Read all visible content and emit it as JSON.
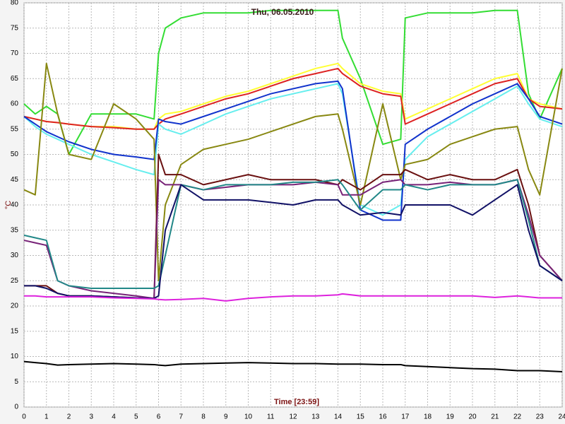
{
  "chart_data": {
    "type": "line",
    "title": "Thu, 06.05.2010",
    "x_label": "Time [23:59]",
    "y_label": "°C",
    "x": [
      0,
      0.5,
      1,
      1.5,
      2,
      3,
      4,
      5,
      5.8,
      6,
      6.3,
      7,
      8,
      9,
      10,
      11,
      12,
      13,
      14,
      14.2,
      15,
      16,
      16.8,
      17,
      18,
      19,
      20,
      21,
      22,
      22.5,
      23,
      24
    ],
    "xlim": [
      0,
      24
    ],
    "xticks": [
      0,
      1,
      2,
      3,
      4,
      5,
      6,
      7,
      8,
      9,
      10,
      11,
      12,
      13,
      14,
      15,
      16,
      17,
      18,
      19,
      20,
      21,
      22,
      23,
      24
    ],
    "ylim": [
      0,
      80
    ],
    "yticks": [
      0,
      5,
      10,
      15,
      20,
      25,
      30,
      35,
      40,
      45,
      50,
      55,
      60,
      65,
      70,
      75,
      80
    ],
    "grid": true,
    "series": [
      {
        "color": "#33dd33",
        "values": [
          60,
          58,
          59.5,
          58,
          50,
          58,
          58,
          58,
          57,
          70,
          75,
          77,
          78,
          78,
          78,
          78.5,
          78.5,
          78.5,
          78.5,
          73,
          65,
          52,
          53,
          77,
          78,
          78,
          78,
          78.5,
          78.5,
          62,
          57,
          67
        ]
      },
      {
        "color": "#ffff33",
        "values": [
          57.5,
          57,
          56.5,
          56.3,
          56,
          55.5,
          55.5,
          55,
          55,
          57,
          58,
          58.5,
          60,
          61.5,
          62.5,
          64,
          65.5,
          67,
          68,
          67,
          64,
          62.5,
          62,
          57,
          59,
          61,
          63,
          65,
          66,
          61,
          60,
          59
        ]
      },
      {
        "color": "#dd2222",
        "values": [
          57.5,
          57,
          56.5,
          56.3,
          56,
          55.5,
          55.3,
          55,
          55,
          56,
          57,
          58,
          59.5,
          61,
          62,
          63.5,
          65,
          66,
          67,
          66,
          63.5,
          62,
          61.5,
          56,
          58,
          60,
          62,
          64,
          65,
          61,
          59.5,
          59
        ]
      },
      {
        "color": "#66eeee",
        "values": [
          57.5,
          55.5,
          54,
          53,
          52,
          50,
          48.5,
          47,
          46,
          56,
          55,
          54,
          56,
          58,
          59.5,
          61,
          62,
          63,
          64,
          62,
          40,
          38,
          40,
          49,
          53.5,
          56,
          58.5,
          61,
          63.5,
          60,
          57,
          55.5
        ]
      },
      {
        "color": "#1133cc",
        "values": [
          57.5,
          56,
          54.5,
          53.5,
          52.5,
          51,
          50,
          49.5,
          49,
          57,
          56.5,
          56,
          57.5,
          59,
          60.5,
          62,
          63,
          64,
          64.5,
          63,
          39,
          37,
          37,
          52,
          55,
          57.5,
          60,
          62,
          64,
          61,
          57.5,
          56
        ]
      },
      {
        "color": "#888811",
        "values": [
          43,
          42,
          68,
          58,
          50,
          49,
          60,
          57,
          53,
          25,
          40,
          48,
          51,
          52,
          53,
          54.5,
          56,
          57.5,
          58,
          55,
          40,
          60,
          45,
          48,
          49,
          52,
          53.5,
          55,
          55.5,
          47,
          42,
          67
        ]
      },
      {
        "color": "#6a1010",
        "values": [
          24,
          24,
          24,
          22.5,
          22,
          22,
          21.8,
          21.6,
          21.5,
          50,
          46,
          46,
          44,
          45,
          46,
          45,
          45,
          45,
          44,
          45,
          43,
          46,
          46,
          47,
          45,
          46,
          45,
          45,
          47,
          40,
          30,
          25
        ]
      },
      {
        "color": "#772277",
        "values": [
          33,
          32.5,
          32,
          25,
          24,
          23,
          22.5,
          22,
          21.5,
          45,
          44,
          44,
          43,
          43.5,
          44,
          44,
          44,
          44.5,
          44,
          42,
          42,
          44.5,
          45,
          44,
          44,
          44.5,
          44,
          44,
          45,
          38,
          30,
          25
        ]
      },
      {
        "color": "#228888",
        "values": [
          34,
          33.5,
          33,
          25,
          24,
          23.5,
          23.5,
          23.5,
          23.5,
          24,
          30,
          44,
          43,
          44,
          44,
          44,
          44.5,
          44.5,
          45,
          44,
          39,
          43,
          43,
          44,
          43,
          44,
          44,
          44,
          45,
          37,
          28,
          25
        ]
      },
      {
        "color": "#111166",
        "values": [
          24,
          24,
          23.5,
          22.5,
          22,
          22,
          21.8,
          21.6,
          21.5,
          22,
          35,
          44,
          41,
          41,
          41,
          40.5,
          40,
          41,
          41,
          40,
          38,
          38.5,
          38,
          40,
          40,
          40,
          38,
          41,
          44,
          35,
          28,
          25
        ]
      },
      {
        "color": "#dd22dd",
        "values": [
          22,
          22,
          21.8,
          21.8,
          21.8,
          21.8,
          21.6,
          21.5,
          21.4,
          21.3,
          21.2,
          21.3,
          21.5,
          21,
          21.5,
          21.8,
          22,
          22,
          22.2,
          22.4,
          22,
          22,
          22,
          22,
          22,
          22,
          22,
          21.7,
          22,
          21.8,
          21.6,
          21.6
        ]
      },
      {
        "color": "#000000",
        "values": [
          9,
          8.8,
          8.6,
          8.3,
          8.4,
          8.5,
          8.6,
          8.5,
          8.4,
          8.3,
          8.2,
          8.5,
          8.6,
          8.7,
          8.8,
          8.7,
          8.6,
          8.6,
          8.5,
          8.5,
          8.5,
          8.4,
          8.4,
          8.2,
          8,
          7.8,
          7.6,
          7.5,
          7.2,
          7.2,
          7.2,
          7
        ]
      }
    ]
  }
}
